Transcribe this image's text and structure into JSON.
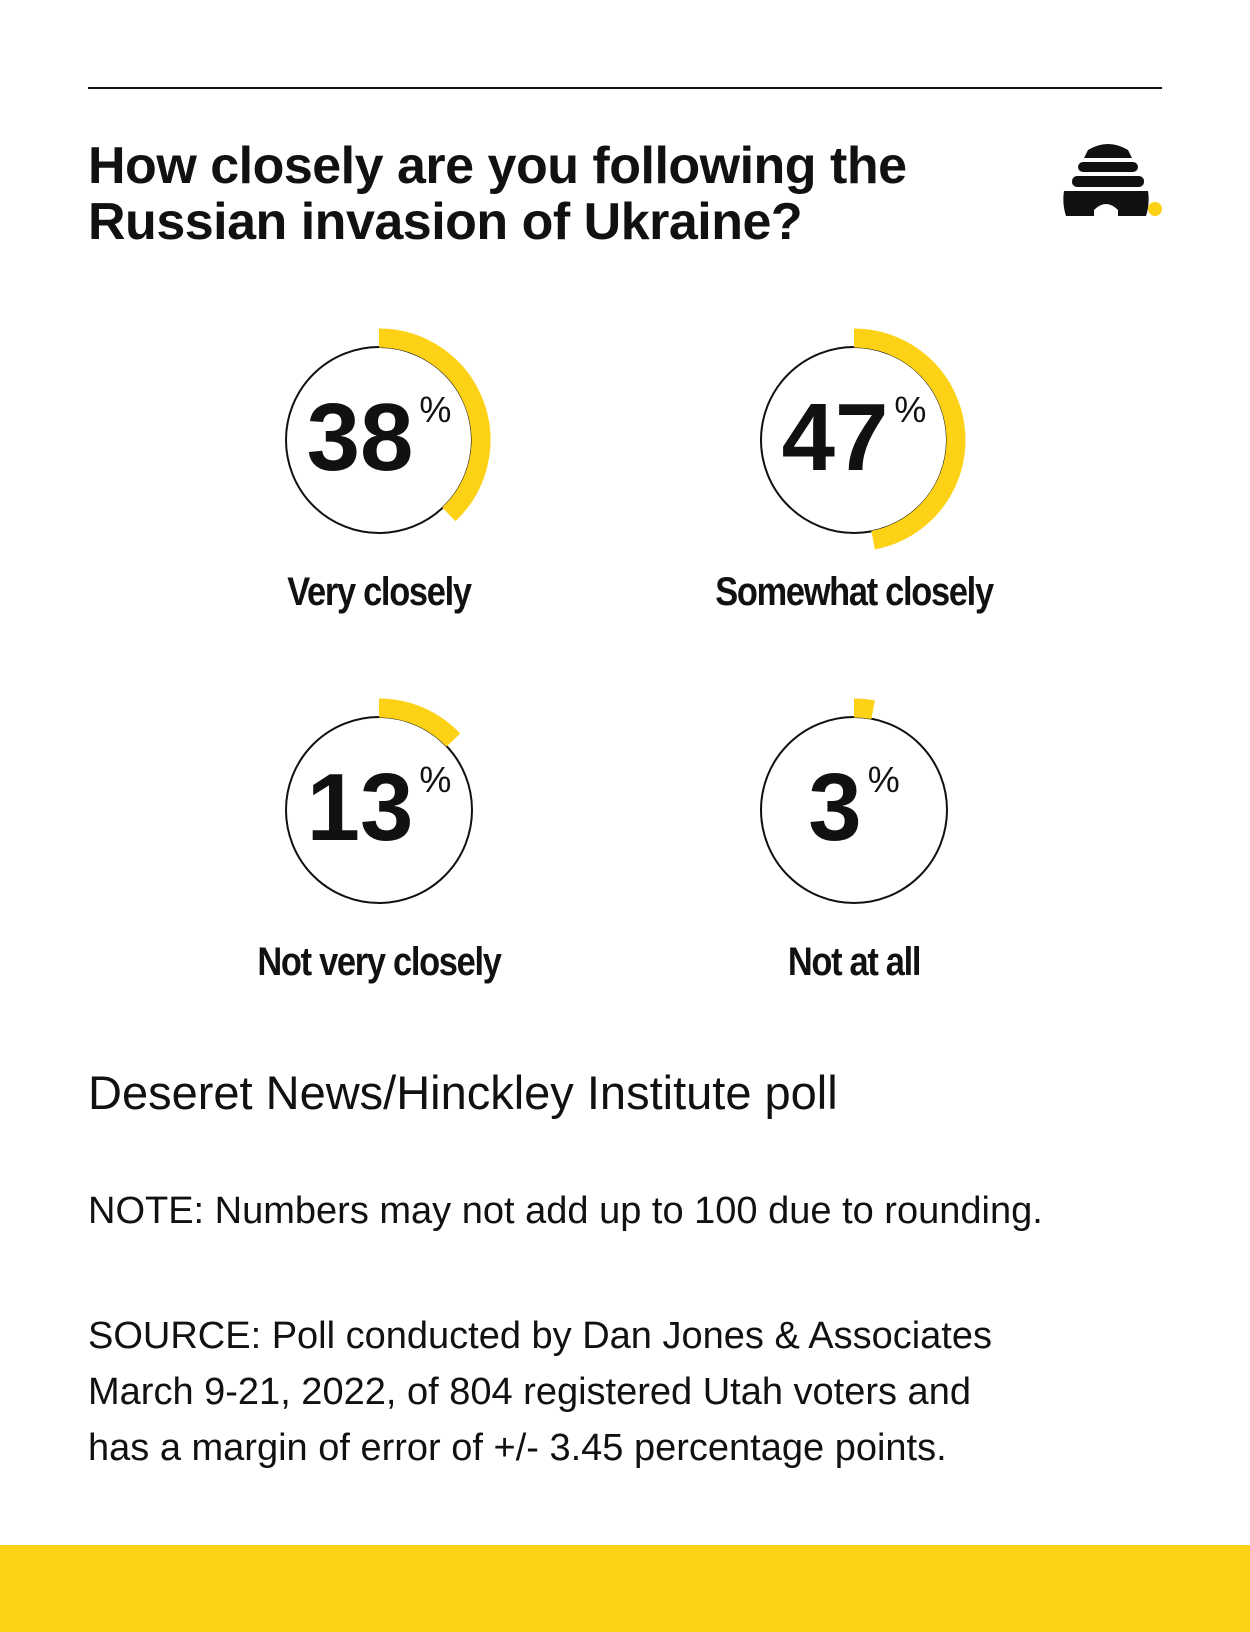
{
  "title": "How closely are you following the Russian invasion of Ukraine?",
  "colors": {
    "accent": "#FDD216",
    "ink": "#111111",
    "background": "#FFFFFF"
  },
  "logo": {
    "icon": "beehive-icon"
  },
  "chart_data": {
    "type": "donut",
    "unit": "%",
    "title": "How closely are you following the Russian invasion of Ukraine?",
    "categories": [
      "Very closely",
      "Somewhat closely",
      "Not very closely",
      "Not at all"
    ],
    "values": [
      38,
      47,
      13,
      3
    ],
    "layout": "2x2 grid"
  },
  "poll_name": "Deseret News/Hinckley Institute poll",
  "note": "NOTE: Numbers may not add up to 100 due to rounding.",
  "source": {
    "lines": [
      "SOURCE: Poll conducted by Dan Jones & Associates",
      "March 9-21, 2022, of 804 registered Utah voters and",
      "has a margin of error of +/- 3.45 percentage points."
    ]
  }
}
